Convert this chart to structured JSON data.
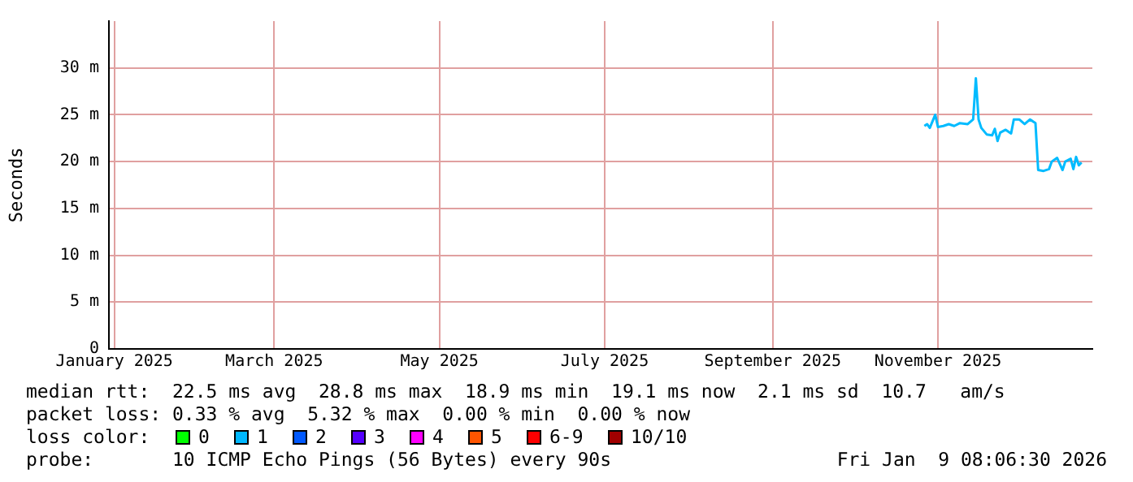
{
  "chart_data": {
    "type": "line",
    "ylabel": "Seconds",
    "x": [
      "2025-10-27",
      "2025-10-28",
      "2025-10-29",
      "2025-10-31",
      "2025-11-01",
      "2025-11-03",
      "2025-11-05",
      "2025-11-07",
      "2025-11-09",
      "2025-11-12",
      "2025-11-14",
      "2025-11-15",
      "2025-11-16",
      "2025-11-17",
      "2025-11-19",
      "2025-11-21",
      "2025-11-22",
      "2025-11-23",
      "2025-11-24",
      "2025-11-26",
      "2025-11-28",
      "2025-11-29",
      "2025-12-01",
      "2025-12-03",
      "2025-12-05",
      "2025-12-07",
      "2025-12-08",
      "2025-12-10",
      "2025-12-12",
      "2025-12-13",
      "2025-12-15",
      "2025-12-17",
      "2025-12-18",
      "2025-12-20",
      "2025-12-21",
      "2025-12-22",
      "2025-12-23",
      "2025-12-24"
    ],
    "series": [
      {
        "color": "#00bbff",
        "values": [
          23.8,
          24.0,
          23.6,
          25.0,
          23.7,
          23.8,
          24.0,
          23.8,
          24.1,
          24.0,
          24.5,
          28.9,
          24.5,
          23.6,
          22.9,
          22.8,
          23.5,
          22.2,
          23.1,
          23.4,
          23.0,
          24.5,
          24.5,
          24.0,
          24.5,
          24.1,
          19.1,
          19.0,
          19.2,
          20.0,
          20.4,
          19.1,
          20.0,
          20.3,
          19.2,
          20.5,
          19.6,
          19.9
        ]
      }
    ],
    "xlim": [
      "2024-12-30",
      "2025-12-28"
    ],
    "xticks": [
      {
        "value": "2025-01-01",
        "label": "January 2025"
      },
      {
        "value": "2025-03-01",
        "label": "March 2025"
      },
      {
        "value": "2025-05-01",
        "label": "May 2025"
      },
      {
        "value": "2025-07-01",
        "label": "July 2025"
      },
      {
        "value": "2025-09-01",
        "label": "September 2025"
      },
      {
        "value": "2025-11-01",
        "label": "November 2025"
      }
    ],
    "ylim": [
      0,
      35
    ],
    "yticks": [
      0,
      {
        "value": 5,
        "label": "5 m"
      },
      {
        "value": 10,
        "label": "10 m"
      },
      {
        "value": 15,
        "label": "15 m"
      },
      {
        "value": 20,
        "label": "20 m"
      },
      {
        "value": 25,
        "label": "25 m"
      },
      {
        "value": 30,
        "label": "30 m"
      }
    ],
    "grid": true,
    "legend": false,
    "marker": "none",
    "line_style": "solid",
    "annotations": [
      "median rtt:  22.5 ms avg  28.8 ms max  18.9 ms min  19.1 ms now  2.1 ms sd  10.7   am/s",
      "packet loss: 0.33 % avg  5.32 % max  0.00 % min  0.00 % now",
      "loss color:",
      "0",
      "1",
      "2",
      "3",
      "4",
      "5",
      "6-9",
      "10/10",
      "probe:       10 ICMP Echo Pings (56 Bytes) every 90s",
      "Fri Jan  9 08:06:30 2026"
    ]
  }
}
